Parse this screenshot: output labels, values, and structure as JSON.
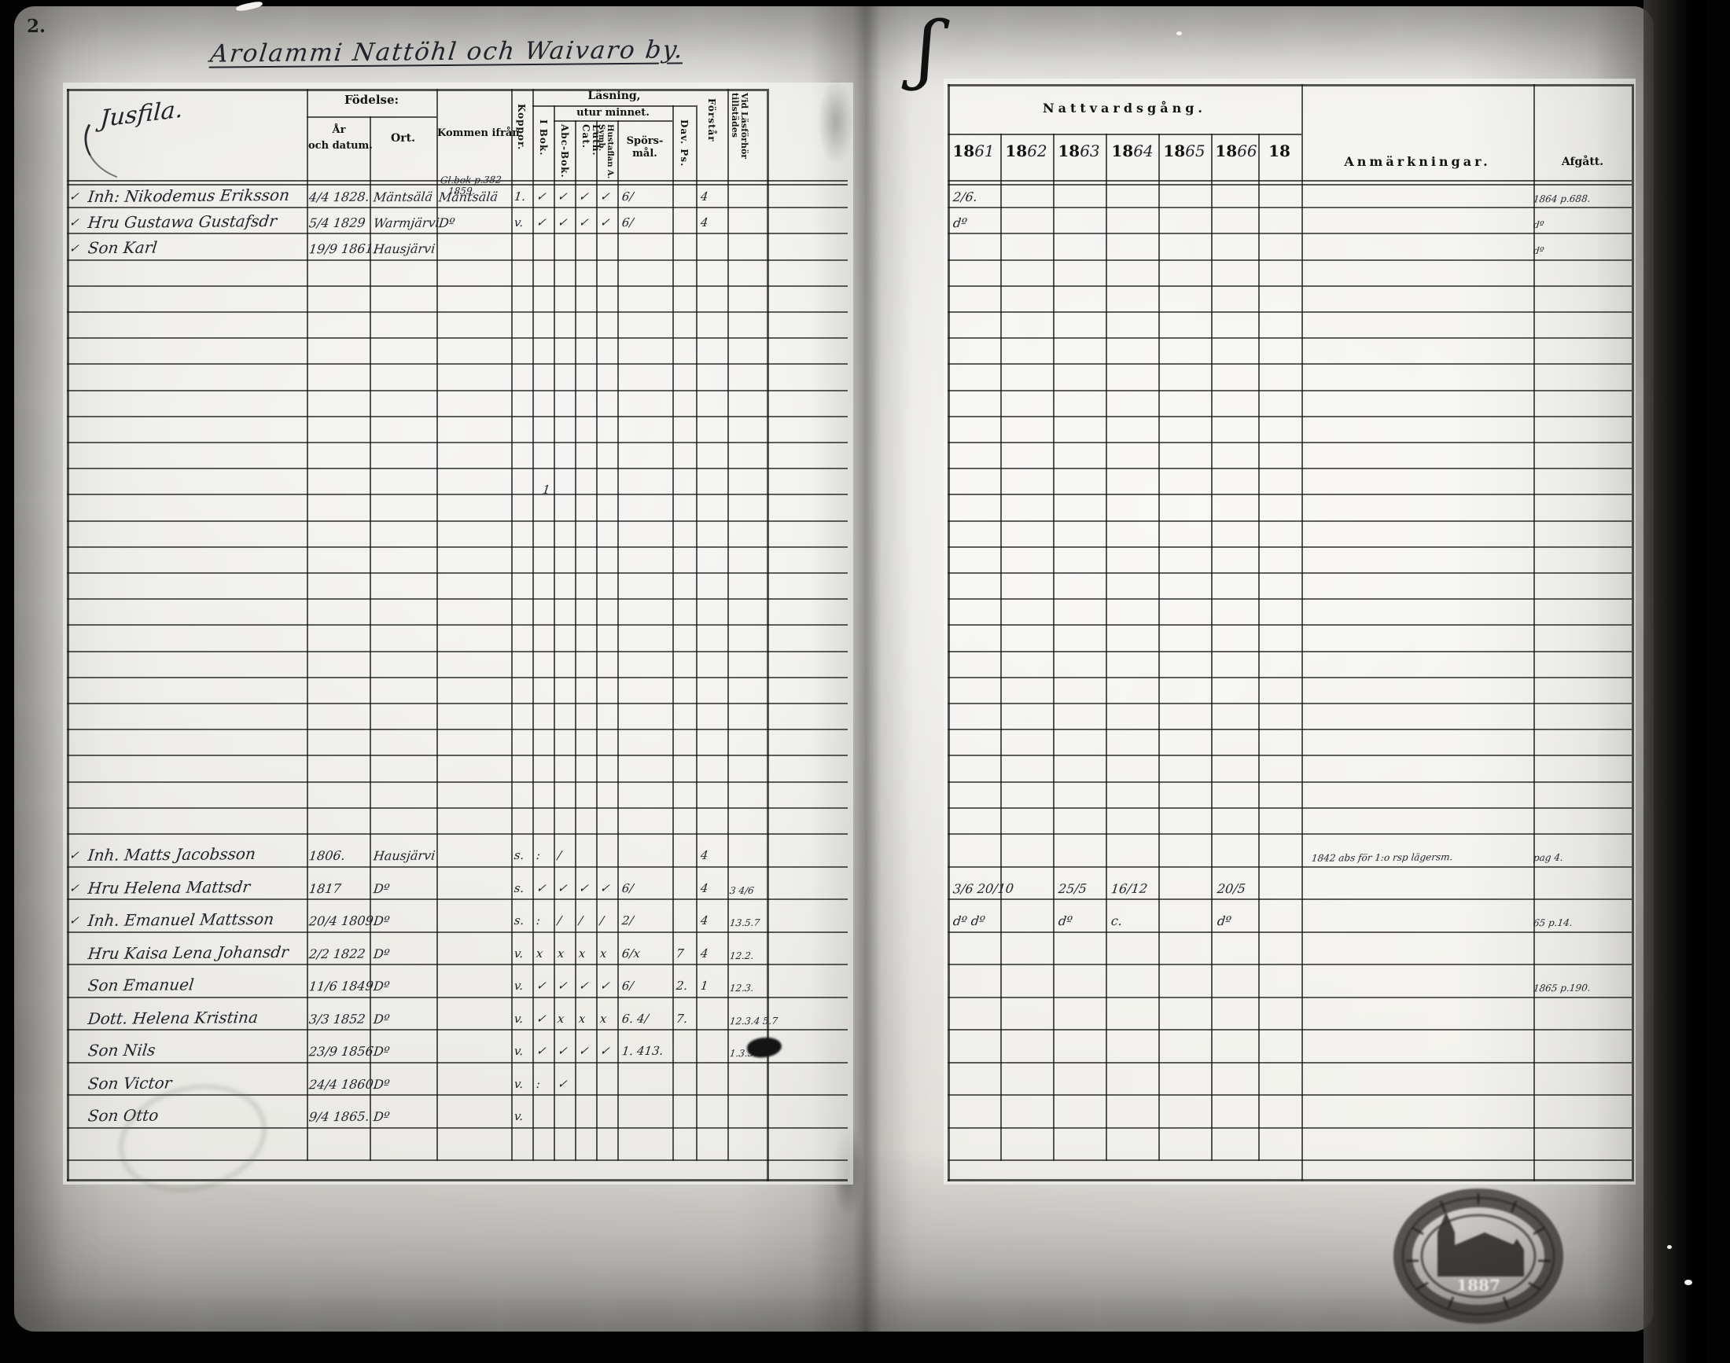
{
  "page": {
    "number": "2.",
    "title": "Arolammi Nattöhl och Waivaro by.",
    "brace": "ʃ"
  },
  "left_header": {
    "household": "Jusfila.",
    "fodelse": "Födelse:",
    "ar": "År",
    "och_datum": "och datum.",
    "ort": "Ort.",
    "kommen": "Kommen ifrån",
    "koppor": "Koppor.",
    "lasning": "Läsning,",
    "utur": "utur minnet.",
    "ibok": "I Bok.",
    "abc": "Abc-Bok.",
    "luth": "Luth. Cat.",
    "hust": "Hustaflan A. Symb.",
    "spors": "Spörs-mål.",
    "davps": "Dav. Ps.",
    "forstar": "Förstår",
    "vidlas": "Vid Läsförhör tillstädes"
  },
  "right_header": {
    "nattvardsgang": "Nattvardsgång.",
    "years": [
      {
        "printed": "18",
        "written": "61"
      },
      {
        "printed": "18",
        "written": "62"
      },
      {
        "printed": "18",
        "written": "63"
      },
      {
        "printed": "18",
        "written": "64"
      },
      {
        "printed": "18",
        "written": "65"
      },
      {
        "printed": "18",
        "written": "66"
      },
      {
        "printed": "18",
        "written": ""
      }
    ],
    "anmarkningar": "Anmärkningar.",
    "afgatt": "Afgått."
  },
  "records": {
    "blocks": [
      {
        "rows": [
          {
            "margin": "✓",
            "name": "Inh: Nikodemus Eriksson",
            "born": "4/4 1828.",
            "ort": "Mäntsälä",
            "kommen": "Mäntsälä",
            "koppor": "1.",
            "ibok": "✓",
            "abc": "✓",
            "luth": "✓",
            "hust": "✓",
            "spors": "6/",
            "forstar": "4",
            "y1861": "2/6.",
            "afgatt": "1864 p.688."
          },
          {
            "margin": "✓",
            "name": "Hru Gustawa Gustafsdr",
            "born": "5/4 1829",
            "ort": "Warmjärvi",
            "kommen": "Dº",
            "koppor": "v.",
            "ibok": "✓",
            "abc": "✓",
            "luth": "✓",
            "hust": "✓",
            "spors": "6/",
            "forstar": "4",
            "y1861": "dº",
            "afgatt": "dº"
          },
          {
            "margin": "✓",
            "name": "Son Karl",
            "born": "19/9 1861.",
            "ort": "Hausjärvi",
            "afgatt": "dº"
          }
        ]
      },
      {
        "rows": [
          {
            "margin": "✓",
            "name": "Inh. Matts Jacobsson",
            "born": "1806.",
            "ort": "Hausjärvi",
            "koppor": "s.",
            "ibok": ":",
            "abc": "/",
            "forstar": "4",
            "anm": "1842 abs för 1:o rsp lägersm.",
            "afgatt": "pag 4."
          },
          {
            "margin": "✓",
            "name": "Hru Helena Mattsdr",
            "born": "1817",
            "ort": "Dº",
            "koppor": "s.",
            "ibok": "✓",
            "abc": "✓",
            "luth": "✓",
            "hust": "✓",
            "spors": "6/",
            "forstar": "4",
            "vidlas": "3 4/6",
            "y1861": "3/6 20/10",
            "y1863": "25/5",
            "y1864": "16/12",
            "y1866": "20/5"
          },
          {
            "margin": "✓",
            "name": "Inh. Emanuel Mattsson",
            "born": "20/4 1809.",
            "ort": "Dº",
            "koppor": "s.",
            "ibok": ":",
            "abc": "/",
            "luth": "/",
            "hust": "/",
            "spors": "2/",
            "forstar": "4",
            "vidlas": "13.5.7",
            "y1861": "dº dº",
            "y1863": "dº",
            "y1864": "c.",
            "y1866": "dº",
            "afgatt": "65 p.14."
          },
          {
            "name": "Hru Kaisa Lena Johansdr",
            "born": "2/2 1822",
            "ort": "Dº",
            "koppor": "v.",
            "ibok": "x",
            "abc": "x",
            "luth": "x",
            "hust": "x",
            "spors": "6/x",
            "davps": "7",
            "forstar": "4",
            "vidlas": "12.2."
          },
          {
            "name": "Son Emanuel",
            "born": "11/6 1849",
            "ort": "Dº",
            "koppor": "v.",
            "ibok": "✓",
            "abc": "✓",
            "luth": "✓",
            "hust": "✓",
            "spors": "6/",
            "davps": "2.",
            "forstar": "1",
            "vidlas": "12.3.",
            "afgatt": "1865 p.190."
          },
          {
            "name": "Dott. Helena Kristina",
            "born": "3/3 1852",
            "ort": "Dº",
            "koppor": "v.",
            "ibok": "✓",
            "abc": "x",
            "luth": "x",
            "hust": "x",
            "spors": "6. 4/",
            "davps": "7.",
            "vidlas": "12.3.4 5.7"
          },
          {
            "name": "Son Nils",
            "born": "23/9 1856",
            "ort": "Dº",
            "koppor": "v.",
            "ibok": "✓",
            "abc": "✓",
            "luth": "✓",
            "hust": "✓",
            "spors": "1. 413.",
            "vidlas": "1.3.5.4"
          },
          {
            "name": "Son Victor",
            "born": "24/4 1860.",
            "ort": "Dº",
            "koppor": "v.",
            "ibok": ":",
            "abc": "✓"
          },
          {
            "name": "Son Otto",
            "born": "9/4 1865.",
            "ort": "Dº",
            "koppor": "v."
          }
        ]
      }
    ]
  },
  "extras": {
    "kommen_note1": "Gl.bok p.382",
    "kommen_note2": "1859.",
    "stray": "1",
    "stamp_year": "1887"
  }
}
